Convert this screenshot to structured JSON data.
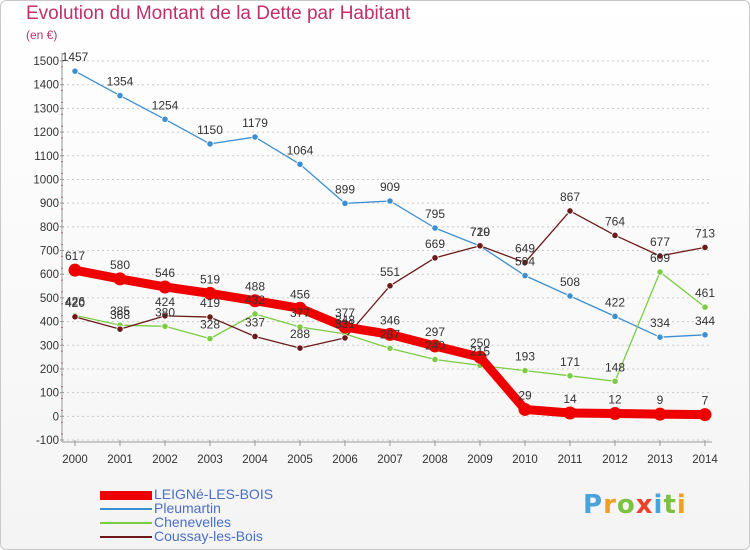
{
  "title": "Evolution du Montant de la Dette par Habitant",
  "unit_label": "(en €)",
  "logo": {
    "text": "Proxiti",
    "letters": [
      "P",
      "r",
      "o",
      "x",
      "i",
      "t",
      "i"
    ],
    "colors": [
      "#4aa3d9",
      "#f0a020",
      "#7cc242",
      "#e8442b",
      "#4aa3d9",
      "#7cc242",
      "#f0a020"
    ]
  },
  "chart_data": {
    "type": "line",
    "title": "Evolution du Montant de la Dette par Habitant",
    "ylabel": "(en €)",
    "xlabel": "",
    "x": [
      "2000",
      "2001",
      "2002",
      "2003",
      "2004",
      "2005",
      "2006",
      "2007",
      "2008",
      "2009",
      "2010",
      "2011",
      "2012",
      "2013",
      "2014"
    ],
    "ylim": [
      -100,
      1500
    ],
    "yticks": [
      "-100",
      "0",
      "100",
      "200",
      "300",
      "400",
      "500",
      "600",
      "700",
      "800",
      "900",
      "1000",
      "1100",
      "1200",
      "1300",
      "1400",
      "1500"
    ],
    "grid": "horizontal dashed",
    "legend_position": "bottom-left",
    "series": [
      {
        "name": "LEIGNé-LES-BOIS",
        "color": "#ee0000",
        "values": [
          617,
          580,
          546,
          519,
          488,
          456,
          377,
          346,
          297,
          250,
          29,
          14,
          12,
          9,
          7
        ]
      },
      {
        "name": "Pleumartin",
        "color": "#3e8fd0",
        "values": [
          1457,
          1354,
          1254,
          1150,
          1179,
          1064,
          899,
          909,
          795,
          719,
          594,
          508,
          422,
          334,
          344
        ]
      },
      {
        "name": "Chenevelles",
        "color": "#7ccc44",
        "values": [
          426,
          385,
          380,
          328,
          432,
          377,
          348,
          287,
          240,
          215,
          193,
          171,
          148,
          609,
          461
        ]
      },
      {
        "name": "Coussay-les-Bois",
        "color": "#6b1a1a",
        "values": [
          420,
          368,
          424,
          419,
          337,
          288,
          331,
          551,
          669,
          720,
          649,
          867,
          764,
          677,
          713
        ]
      }
    ]
  }
}
